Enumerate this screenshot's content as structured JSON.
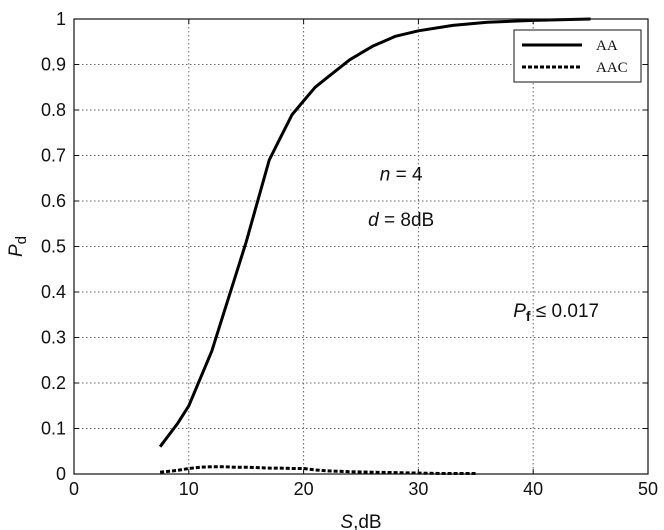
{
  "chart_data": {
    "type": "line",
    "xlabel": "S,dB",
    "ylabel": "Pd",
    "xlim": [
      0,
      50
    ],
    "ylim": [
      0,
      1
    ],
    "xticks": [
      "0",
      "10",
      "20",
      "30",
      "40",
      "50"
    ],
    "yticks": [
      "0",
      "0.1",
      "0.2",
      "0.3",
      "0.4",
      "0.5",
      "0.6",
      "0.7",
      "0.8",
      "0.9",
      "1"
    ],
    "grid": true,
    "legend_position": "top-right",
    "series": [
      {
        "name": "AA",
        "style": "solid",
        "color": "#000000",
        "x": [
          7.5,
          9,
          10,
          11,
          12,
          13,
          14,
          15,
          16,
          17,
          18,
          19,
          20,
          21,
          22,
          23,
          24,
          25,
          26,
          28,
          30,
          33,
          36,
          40,
          45
        ],
        "y": [
          0.06,
          0.11,
          0.15,
          0.21,
          0.27,
          0.35,
          0.43,
          0.51,
          0.6,
          0.69,
          0.74,
          0.79,
          0.82,
          0.85,
          0.87,
          0.89,
          0.91,
          0.925,
          0.94,
          0.962,
          0.974,
          0.986,
          0.993,
          0.997,
          1.0
        ]
      },
      {
        "name": "AAC",
        "style": "dashed",
        "color": "#000000",
        "x": [
          7.5,
          9,
          10,
          11,
          12,
          13,
          14,
          15,
          16,
          17,
          18,
          19,
          20,
          21,
          22,
          24,
          26,
          28,
          30,
          32,
          35
        ],
        "y": [
          0.004,
          0.008,
          0.012,
          0.015,
          0.016,
          0.016,
          0.015,
          0.015,
          0.014,
          0.013,
          0.013,
          0.012,
          0.012,
          0.009,
          0.007,
          0.005,
          0.004,
          0.003,
          0.002,
          0.001,
          0.001
        ]
      }
    ],
    "annotations": {
      "n": {
        "var": "n",
        "text": " = 4",
        "x": 28.5,
        "y": 0.645
      },
      "d": {
        "var": "d",
        "text": " = 8dB",
        "x": 28.5,
        "y": 0.545
      },
      "pf": {
        "var": "P",
        "sub": "f",
        "text": " ≤ 0.017",
        "x": 42,
        "y": 0.345
      }
    }
  }
}
